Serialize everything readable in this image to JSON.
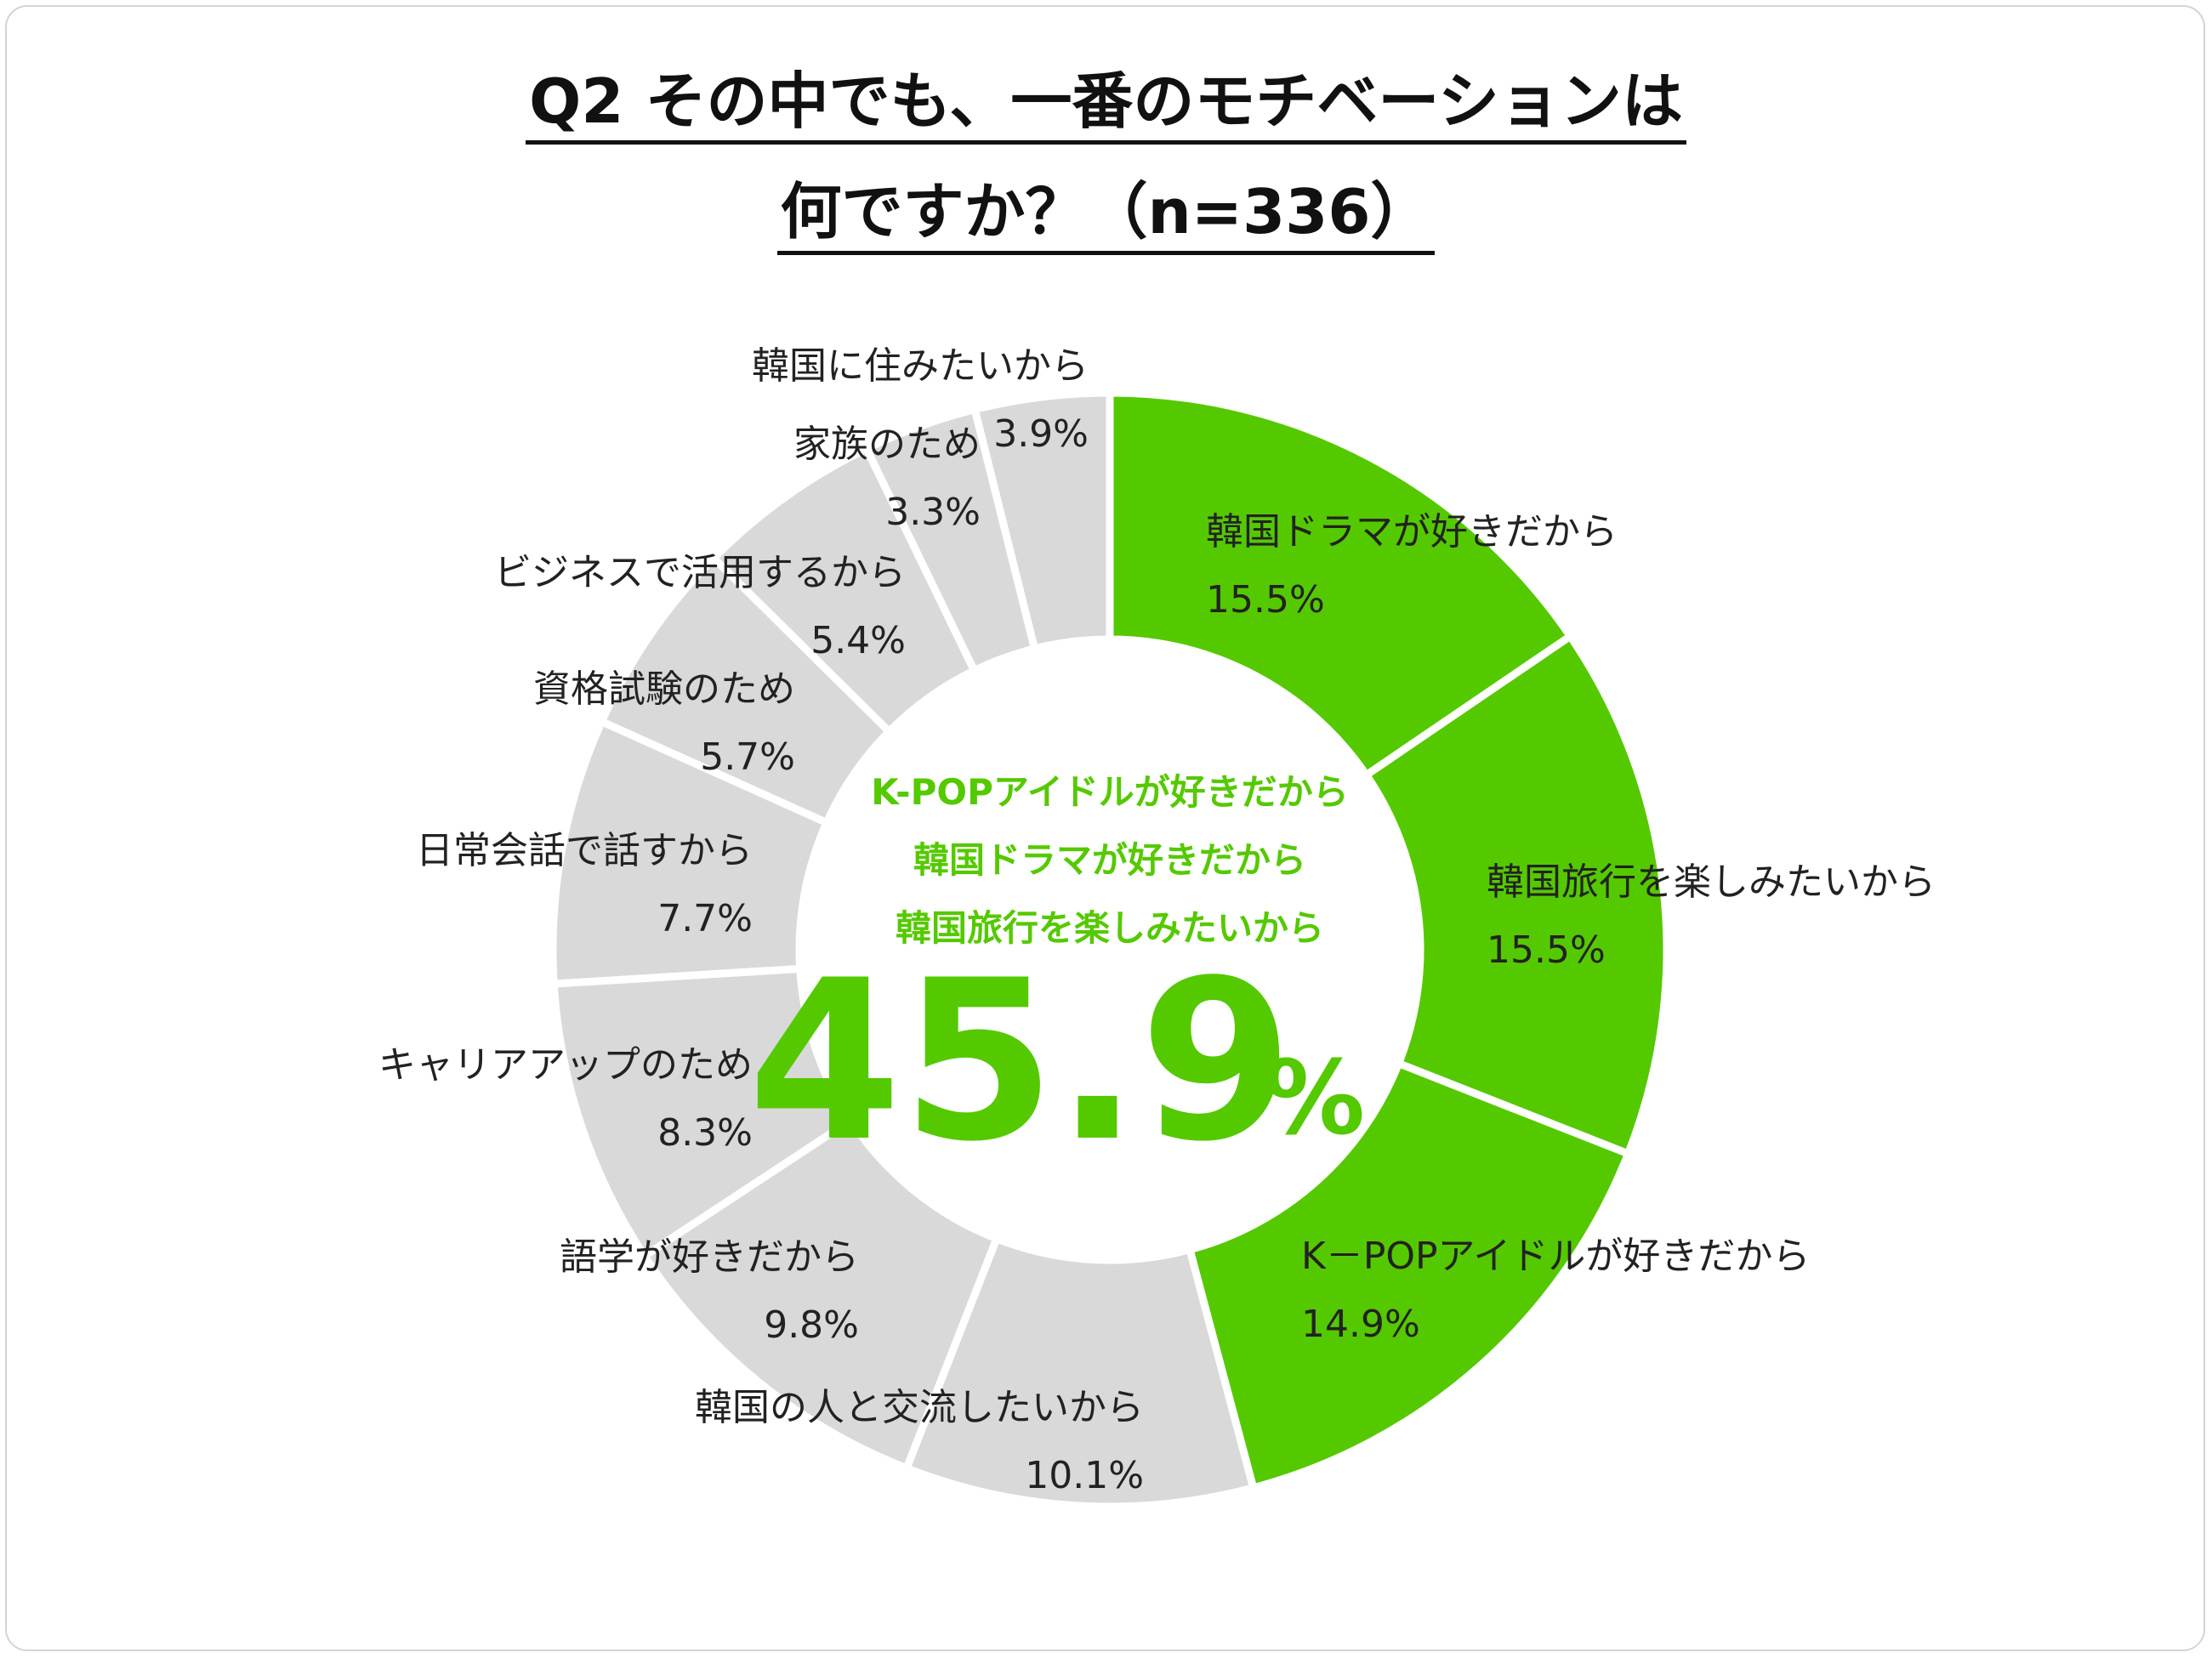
{
  "chart_data": {
    "type": "pie",
    "title": "Q2 その中でも、一番のモチベーションは何ですか？（n=336）",
    "title_lines": [
      "Q2 その中でも、一番のモチベーションは",
      "何ですか？（n=336）"
    ],
    "donut": true,
    "slices": [
      {
        "label": "韓国ドラマが好きだから",
        "value": 15.5,
        "value_label": "15.5%",
        "highlight": true
      },
      {
        "label": "韓国旅行を楽しみたいから",
        "value": 15.5,
        "value_label": "15.5%",
        "highlight": true
      },
      {
        "label": "K－POPアイドルが好きだから",
        "value": 14.9,
        "value_label": "14.9%",
        "highlight": true
      },
      {
        "label": "韓国の人と交流したいから",
        "value": 10.1,
        "value_label": "10.1%",
        "highlight": false
      },
      {
        "label": "語学が好きだから",
        "value": 9.8,
        "value_label": "9.8%",
        "highlight": false
      },
      {
        "label": "キャリアアップのため",
        "value": 8.3,
        "value_label": "8.3%",
        "highlight": false
      },
      {
        "label": "日常会話で話すから",
        "value": 7.7,
        "value_label": "7.7%",
        "highlight": false
      },
      {
        "label": "資格試験のため",
        "value": 5.7,
        "value_label": "5.7%",
        "highlight": false
      },
      {
        "label": "ビジネスで活用するから",
        "value": 5.4,
        "value_label": "5.4%",
        "highlight": false
      },
      {
        "label": "家族のため",
        "value": 3.3,
        "value_label": "3.3%",
        "highlight": false
      },
      {
        "label": "韓国に住みたいから",
        "value": 3.9,
        "value_label": "3.9%",
        "highlight": false
      }
    ],
    "center": {
      "lines": [
        "K-POPアイドルが好きだから",
        "韓国ドラマが好きだから",
        "韓国旅行を楽しみたいから"
      ],
      "total": "45.9",
      "unit": "%"
    },
    "colors": {
      "highlight": "#55c900",
      "other": "#d9d9d9",
      "separator": "#ffffff"
    }
  }
}
